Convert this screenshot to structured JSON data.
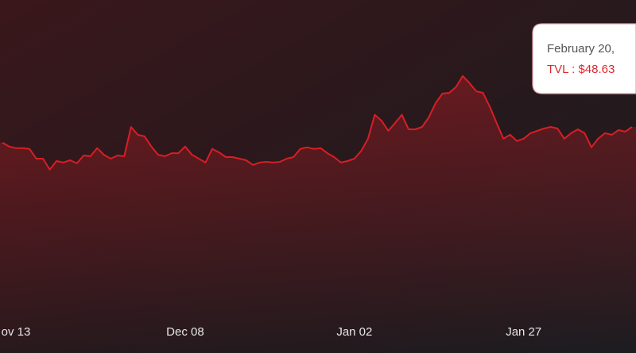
{
  "chart_data": {
    "type": "line",
    "categories": [
      null,
      null,
      "ov 13",
      null,
      null,
      null,
      null,
      null,
      null,
      null,
      null,
      null,
      null,
      null,
      null,
      null,
      null,
      null,
      null,
      null,
      null,
      null,
      null,
      null,
      null,
      null,
      null,
      "Dec 08",
      null,
      null,
      null,
      null,
      null,
      null,
      null,
      null,
      null,
      null,
      null,
      null,
      null,
      null,
      null,
      null,
      null,
      null,
      null,
      null,
      null,
      null,
      null,
      null,
      "Jan 02",
      null,
      null,
      null,
      null,
      null,
      null,
      null,
      null,
      null,
      null,
      null,
      null,
      null,
      null,
      null,
      null,
      null,
      null,
      null,
      null,
      null,
      null,
      null,
      null,
      "Jan 27",
      null,
      null,
      null,
      null,
      null,
      null,
      null,
      null,
      null,
      null,
      null,
      null,
      null,
      null,
      null,
      null
    ],
    "series": [
      {
        "name": "TVL",
        "color": "#d81e25",
        "values": [
          44.6,
          43.6,
          43.2,
          43.2,
          43.0,
          40.5,
          40.5,
          37.7,
          39.9,
          39.5,
          40.1,
          39.3,
          41.3,
          41.1,
          43.2,
          41.5,
          40.5,
          41.3,
          41.1,
          48.6,
          46.6,
          46.2,
          43.6,
          41.5,
          41.1,
          41.9,
          41.9,
          43.6,
          41.5,
          40.5,
          39.5,
          43.0,
          42.1,
          40.9,
          40.9,
          40.5,
          40.1,
          38.9,
          39.5,
          39.7,
          39.5,
          39.7,
          40.5,
          40.9,
          43.0,
          43.4,
          43.0,
          43.2,
          41.9,
          40.9,
          39.5,
          39.9,
          40.5,
          42.5,
          45.6,
          51.7,
          50.2,
          47.6,
          49.6,
          51.7,
          48.0,
          48.0,
          48.6,
          51.1,
          54.7,
          57.1,
          57.3,
          58.8,
          61.6,
          59.8,
          57.7,
          57.3,
          53.7,
          49.6,
          45.6,
          46.6,
          45.0,
          45.6,
          47.0,
          47.6,
          48.2,
          48.6,
          48.2,
          45.6,
          47.0,
          48.0,
          47.0,
          43.4,
          45.6,
          47.0,
          46.6,
          47.8,
          47.4,
          48.6
        ]
      }
    ],
    "ylim": [
      0,
      81
    ],
    "tooltip": {
      "date": "February 20,",
      "value": "TVL : $48.63"
    }
  }
}
